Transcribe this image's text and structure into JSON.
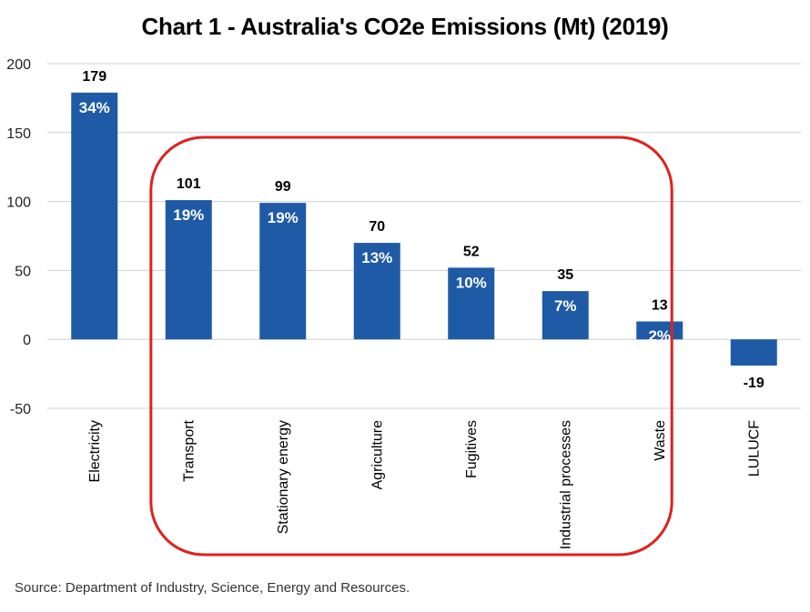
{
  "chart_data": {
    "type": "bar",
    "title": "Chart 1 - Australia's CO2e Emissions (Mt) (2019)",
    "xlabel": "",
    "ylabel": "",
    "categories": [
      "Electricity",
      "Transport",
      "Stationary energy",
      "Agriculture",
      "Fugitives",
      "Industrial processes",
      "Waste",
      "LULUCF"
    ],
    "values": [
      179,
      101,
      99,
      70,
      52,
      35,
      13,
      -19
    ],
    "value_labels": [
      "179",
      "101",
      "99",
      "70",
      "52",
      "35",
      "13",
      "-19"
    ],
    "percent_labels": [
      "34%",
      "19%",
      "19%",
      "13%",
      "10%",
      "7%",
      "2%",
      ""
    ],
    "yticks": [
      "200",
      "150",
      "100",
      "50",
      "0",
      "-50"
    ],
    "ylim": [
      -50,
      200
    ],
    "grid": true,
    "legend": "none",
    "bar_color": "#1f5aa6",
    "highlight": {
      "description": "red rounded rectangle",
      "categories": [
        "Transport",
        "Stationary energy",
        "Agriculture",
        "Fugitives",
        "Industrial processes",
        "Waste"
      ],
      "color": "#e02020"
    }
  },
  "source": "Source: Department of Industry, Science, Energy and Resources."
}
